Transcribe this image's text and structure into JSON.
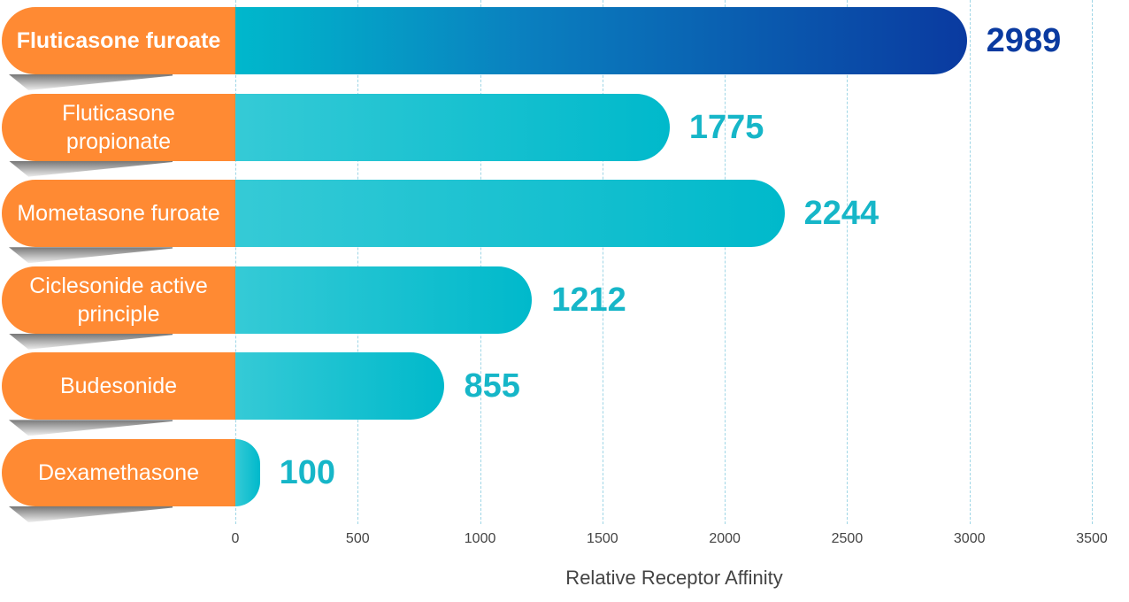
{
  "chart_data": {
    "type": "bar",
    "orientation": "horizontal",
    "categories": [
      "Fluticasone furoate",
      "Fluticasone propionate",
      "Mometasone furoate",
      "Ciclesonide active principle",
      "Budesonide",
      "Dexamethasone"
    ],
    "values": [
      2989,
      1775,
      2244,
      1212,
      855,
      100
    ],
    "colors": [
      "#0a3aa0",
      "#00b9cb",
      "#00b9cb",
      "#00b9cb",
      "#00b9cb",
      "#00b9cb"
    ],
    "label_color": "#ff8a33",
    "highlight": 0,
    "xlim": [
      0,
      3500
    ],
    "xticks": [
      0,
      500,
      1000,
      1500,
      2000,
      2500,
      3000,
      3500
    ],
    "xlabel": "Relative Receptor Affinity",
    "grid": true
  }
}
